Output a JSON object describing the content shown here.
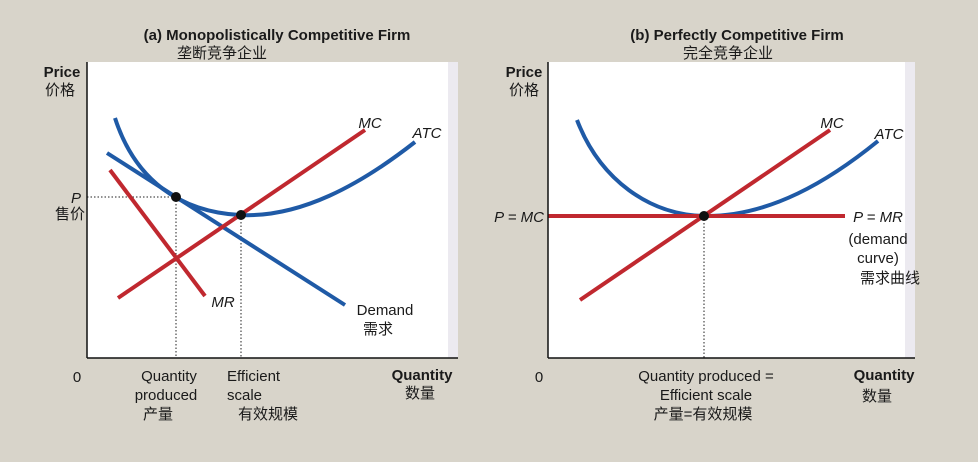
{
  "panels": [
    {
      "title": "(a) Monopolistically Competitive Firm",
      "subtitle": "垄断竞争企业",
      "y_axis": {
        "label": "Price",
        "label_cn": "价格"
      },
      "x_axis": {
        "label": "Quantity",
        "label_cn": "数量"
      },
      "origin": "0",
      "price_label": "P",
      "price_label_cn": "售价",
      "curves": {
        "mc": "MC",
        "atc": "ATC",
        "mr": "MR",
        "demand": "Demand",
        "demand_cn": "需求"
      },
      "quantity_produced": [
        "Quantity",
        "produced",
        "产量"
      ],
      "efficient_scale": [
        "Efficient",
        "scale",
        "有效规模"
      ]
    },
    {
      "title": "(b) Perfectly Competitive Firm",
      "subtitle": "完全竞争企业",
      "y_axis": {
        "label": "Price",
        "label_cn": "价格"
      },
      "x_axis": {
        "label": "Quantity",
        "label_cn": "数量"
      },
      "origin": "0",
      "price_label": "P = MC",
      "curves": {
        "mc": "MC",
        "atc": "ATC",
        "demand": [
          "P = MR",
          "(demand",
          "curve)",
          "需求曲线"
        ]
      },
      "quantity_produced": [
        "Quantity produced =",
        "Efficient scale",
        "产量=有效规模"
      ]
    }
  ]
}
